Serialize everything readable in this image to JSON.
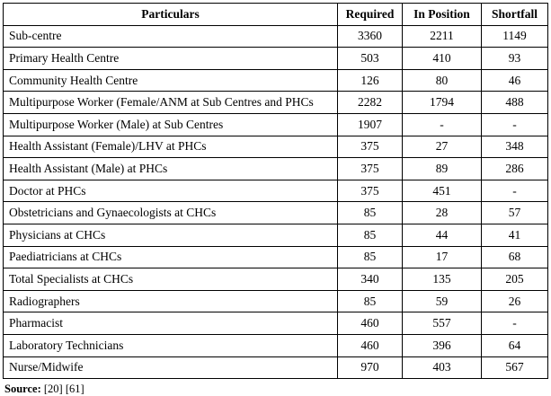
{
  "table": {
    "columns": [
      "Particulars",
      "Required",
      "In Position",
      "Shortfall"
    ],
    "rows": [
      [
        "Sub-centre",
        "3360",
        "2211",
        "1149"
      ],
      [
        "Primary Health Centre",
        "503",
        "410",
        "93"
      ],
      [
        "Community Health Centre",
        "126",
        "80",
        "46"
      ],
      [
        "Multipurpose Worker (Female/ANM at Sub Centres and PHCs",
        "2282",
        "1794",
        "488"
      ],
      [
        "Multipurpose Worker  (Male) at Sub Centres",
        "1907",
        "-",
        "-"
      ],
      [
        "Health Assistant (Female)/LHV at PHCs",
        "375",
        "27",
        "348"
      ],
      [
        "Health Assistant (Male) at PHCs",
        "375",
        "89",
        "286"
      ],
      [
        "Doctor at PHCs",
        "375",
        "451",
        "-"
      ],
      [
        "Obstetricians and Gynaecologists at CHCs",
        "85",
        "28",
        "57"
      ],
      [
        "Physicians at CHCs",
        "85",
        "44",
        "41"
      ],
      [
        "Paediatricians at CHCs",
        "85",
        "17",
        "68"
      ],
      [
        "Total Specialists at CHCs",
        "340",
        "135",
        "205"
      ],
      [
        "Radiographers",
        "85",
        "59",
        "26"
      ],
      [
        "Pharmacist",
        "460",
        "557",
        "-"
      ],
      [
        "Laboratory Technicians",
        "460",
        "396",
        "64"
      ],
      [
        "Nurse/Midwife",
        "970",
        "403",
        "567"
      ]
    ]
  },
  "footer": {
    "source_label": "Source:",
    "source_refs": "[20] [61]"
  }
}
